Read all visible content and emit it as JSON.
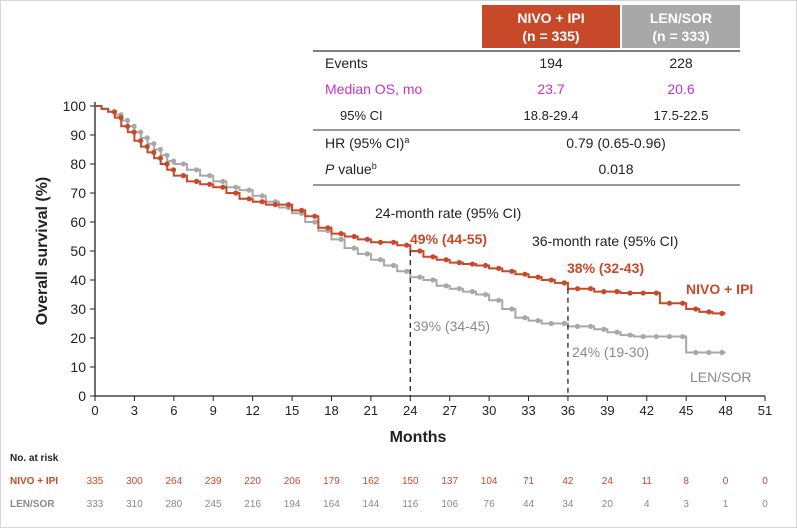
{
  "colors": {
    "nivo": "#c8492a",
    "len": "#a8a8a8",
    "median": "#c633c6",
    "text": "#222222",
    "len_text": "#8a8a8a"
  },
  "table": {
    "arm_headers": [
      {
        "line1": "NIVO + IPI",
        "line2": "(n = 335)"
      },
      {
        "line1": "LEN/SOR",
        "line2": "(n = 333)"
      }
    ],
    "rows": [
      {
        "label": "Events",
        "nivo": "194",
        "len": "228"
      },
      {
        "label": "Median OS, mo",
        "nivo": "23.7",
        "len": "20.6"
      },
      {
        "label": "95% CI",
        "nivo": "18.8-29.4",
        "len": "17.5-22.5"
      }
    ],
    "hr_label": "HR (95% CI)",
    "hr_sup": "a",
    "hr_value": "0.79 (0.65-0.96)",
    "p_label_italic": "P",
    "p_label_rest": " value",
    "p_sup": "b",
    "p_value": "0.018"
  },
  "chart_data": {
    "type": "line",
    "title": "",
    "xlabel": "Months",
    "ylabel": "Overall survival (%)",
    "xlim": [
      0,
      51
    ],
    "ylim": [
      0,
      100
    ],
    "xticks": [
      "0",
      "3",
      "6",
      "9",
      "12",
      "15",
      "18",
      "21",
      "24",
      "27",
      "30",
      "33",
      "36",
      "39",
      "42",
      "45",
      "48",
      "51"
    ],
    "yticks": [
      "0",
      "10",
      "20",
      "30",
      "40",
      "50",
      "60",
      "70",
      "80",
      "90",
      "100"
    ],
    "series": [
      {
        "name": "NIVO + IPI",
        "x": [
          0,
          0.5,
          1,
          1.5,
          2,
          2.5,
          3,
          3.5,
          4,
          4.5,
          5,
          5.5,
          6,
          7,
          8,
          9,
          10,
          11,
          12,
          13,
          14,
          15,
          16,
          17,
          18,
          19,
          20,
          21,
          22,
          23,
          24,
          25,
          26,
          27,
          28,
          29,
          30,
          31,
          32,
          33,
          34,
          35,
          36,
          37,
          38,
          39,
          40,
          41,
          42,
          43,
          44,
          45,
          46,
          47,
          48
        ],
        "y": [
          100,
          99,
          98,
          96,
          93,
          91,
          88,
          86,
          84,
          82,
          80,
          78,
          76,
          74,
          73,
          72,
          70,
          68,
          67,
          66,
          66,
          64,
          62,
          58,
          56,
          55,
          54,
          53,
          53,
          52,
          50,
          48,
          47,
          46,
          45.5,
          45,
          44,
          43,
          42,
          41,
          40,
          39,
          37,
          37,
          36,
          36,
          35.5,
          35.5,
          35.5,
          32,
          32,
          30,
          29,
          28.5,
          28.5
        ]
      },
      {
        "name": "LEN/SOR",
        "x": [
          0,
          0.5,
          1,
          1.5,
          2,
          2.5,
          3,
          3.5,
          4,
          4.5,
          5,
          5.5,
          6,
          7,
          8,
          9,
          10,
          11,
          12,
          13,
          14,
          15,
          16,
          17,
          18,
          19,
          20,
          21,
          22,
          23,
          24,
          25,
          26,
          27,
          28,
          29,
          30,
          31,
          32,
          33,
          34,
          35,
          36,
          37,
          38,
          39,
          40,
          41,
          42,
          43,
          44,
          45,
          46,
          47,
          48
        ],
        "y": [
          100,
          99,
          98,
          97,
          95,
          93,
          91,
          89,
          87,
          85,
          83,
          81,
          80,
          78,
          76,
          74,
          72,
          71,
          69,
          67,
          65,
          63,
          60,
          57,
          54,
          51,
          49,
          47,
          45,
          43,
          41,
          40,
          38,
          37,
          36,
          35,
          33,
          30,
          27,
          26,
          25,
          25,
          24,
          24,
          23,
          22,
          21,
          20.5,
          20.5,
          20.5,
          20.5,
          15,
          15,
          15,
          15
        ]
      }
    ],
    "annotations": {
      "rate24_heading": "24-month rate (95% CI)",
      "rate36_heading": "36-month rate (95% CI)",
      "nivo_24": "49% (44-55)",
      "len_24": "39% (34-45)",
      "nivo_36": "38% (32-43)",
      "len_36": "24% (19-30)",
      "nivo_label": "NIVO + IPI",
      "len_label": "LEN/SOR"
    },
    "at_risk": {
      "title": "No. at risk",
      "times": [
        0,
        3,
        6,
        9,
        12,
        15,
        18,
        21,
        24,
        27,
        30,
        33,
        36,
        39,
        42,
        45,
        48,
        51
      ],
      "rows": [
        {
          "label": "NIVO + IPI",
          "values": [
            "335",
            "300",
            "264",
            "239",
            "220",
            "206",
            "179",
            "162",
            "150",
            "137",
            "104",
            "71",
            "42",
            "24",
            "11",
            "8",
            "0",
            "0"
          ]
        },
        {
          "label": "LEN/SOR",
          "values": [
            "333",
            "310",
            "280",
            "245",
            "216",
            "194",
            "164",
            "144",
            "116",
            "106",
            "76",
            "44",
            "34",
            "20",
            "4",
            "3",
            "1",
            "0"
          ]
        }
      ]
    }
  }
}
